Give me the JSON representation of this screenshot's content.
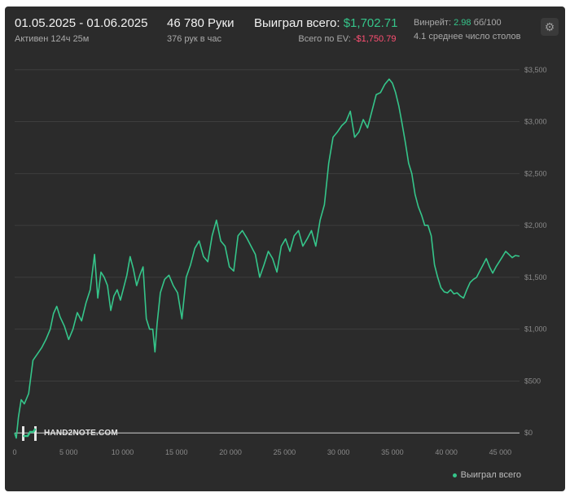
{
  "header": {
    "date_range": "01.05.2025 - 01.06.2025",
    "active": "Активен 124ч 25м",
    "hands": "46 780 Руки",
    "hands_per_hour": "376 рук в час",
    "won_label": "Выиграл всего:",
    "won_value": "$1,702.71",
    "ev_label": "Всего по EV:",
    "ev_value": "-$1,750.79",
    "winrate_label": "Винрейт:",
    "winrate_value": "2.98",
    "winrate_unit": "бб/100",
    "tables": "4.1 среднее число столов",
    "gear_icon": "gear-icon"
  },
  "logo": {
    "text": "HAND2NOTE.COM"
  },
  "legend": {
    "label": "Выиграл всего"
  },
  "colors": {
    "line": "#35c58a",
    "background": "#2b2b2b",
    "ev": "#ff4f73"
  },
  "chart_data": {
    "type": "line",
    "xlim": [
      0,
      46780
    ],
    "ylim": [
      -100,
      3600
    ],
    "x_ticks": [
      0,
      5000,
      10000,
      15000,
      20000,
      25000,
      30000,
      35000,
      40000,
      45000
    ],
    "x_tick_labels": [
      "0",
      "5 000",
      "10 000",
      "15 000",
      "20 000",
      "25 000",
      "30 000",
      "35 000",
      "40 000",
      "45 000"
    ],
    "y_ticks": [
      0,
      500,
      1000,
      1500,
      2000,
      2500,
      3000,
      3500
    ],
    "y_tick_labels": [
      "$0",
      "$500",
      "$1,000",
      "$1,500",
      "$2,000",
      "$2,500",
      "$3,000",
      "$3,500"
    ],
    "grid": "horizontal",
    "legend_position": "bottom-right",
    "series": [
      {
        "name": "Выиграл всего",
        "x": [
          0,
          150,
          350,
          600,
          900,
          1300,
          1700,
          2100,
          2500,
          2900,
          3300,
          3600,
          3900,
          4200,
          4600,
          5000,
          5400,
          5800,
          6200,
          6600,
          7000,
          7400,
          7700,
          8000,
          8300,
          8600,
          8900,
          9200,
          9500,
          9800,
          10100,
          10400,
          10700,
          11000,
          11300,
          11600,
          11900,
          12200,
          12500,
          12800,
          13000,
          13200,
          13500,
          13900,
          14300,
          14700,
          15100,
          15500,
          15900,
          16300,
          16700,
          17100,
          17500,
          17900,
          18300,
          18700,
          19100,
          19500,
          19900,
          20300,
          20700,
          21100,
          21500,
          21900,
          22300,
          22700,
          23100,
          23500,
          23900,
          24300,
          24700,
          25100,
          25500,
          25900,
          26300,
          26700,
          27100,
          27500,
          27900,
          28300,
          28700,
          29100,
          29500,
          29900,
          30300,
          30700,
          31100,
          31500,
          31900,
          32300,
          32700,
          33100,
          33500,
          33900,
          34300,
          34700,
          35000,
          35300,
          35600,
          35900,
          36200,
          36500,
          36800,
          37100,
          37400,
          37700,
          38000,
          38300,
          38600,
          38900,
          39200,
          39500,
          39800,
          40100,
          40400,
          40700,
          41000,
          41300,
          41600,
          41900,
          42200,
          42500,
          42800,
          43100,
          43400,
          43700,
          44000,
          44300,
          44600,
          44900,
          45200,
          45500,
          45800,
          46100,
          46400,
          46780
        ],
        "y": [
          0,
          -50,
          150,
          320,
          280,
          380,
          700,
          760,
          820,
          900,
          1000,
          1150,
          1220,
          1120,
          1030,
          900,
          1000,
          1160,
          1080,
          1250,
          1380,
          1720,
          1300,
          1550,
          1500,
          1420,
          1180,
          1320,
          1380,
          1280,
          1400,
          1520,
          1700,
          1580,
          1420,
          1520,
          1600,
          1100,
          1000,
          1000,
          780,
          1050,
          1350,
          1480,
          1520,
          1420,
          1350,
          1100,
          1500,
          1620,
          1780,
          1850,
          1700,
          1650,
          1900,
          2050,
          1850,
          1800,
          1600,
          1560,
          1900,
          1950,
          1880,
          1800,
          1720,
          1500,
          1620,
          1750,
          1680,
          1550,
          1800,
          1870,
          1750,
          1900,
          1950,
          1800,
          1870,
          1950,
          1800,
          2050,
          2200,
          2600,
          2850,
          2900,
          2960,
          3000,
          3100,
          2850,
          2900,
          3020,
          2940,
          3100,
          3260,
          3280,
          3360,
          3410,
          3370,
          3280,
          3150,
          2980,
          2800,
          2600,
          2500,
          2300,
          2180,
          2100,
          2000,
          2000,
          1900,
          1620,
          1500,
          1400,
          1360,
          1350,
          1380,
          1340,
          1350,
          1320,
          1300,
          1380,
          1450,
          1480,
          1500,
          1560,
          1620,
          1680,
          1600,
          1540,
          1600,
          1650,
          1700,
          1750,
          1720,
          1690,
          1710,
          1702.71
        ]
      }
    ]
  }
}
